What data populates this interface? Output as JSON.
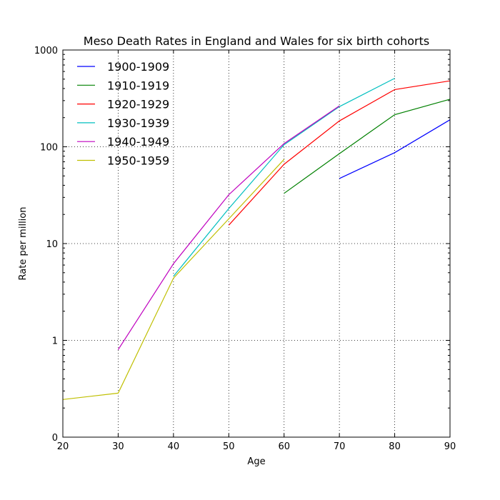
{
  "chart_data": {
    "type": "line",
    "title": "Meso Death Rates in England and Wales for six birth cohorts",
    "xlabel": "Age",
    "ylabel": "Rate per million",
    "xlim": [
      20,
      90
    ],
    "xticks": [
      20,
      30,
      40,
      50,
      60,
      70,
      80,
      90
    ],
    "xtick_labels": [
      "20",
      "30",
      "40",
      "50",
      "60",
      "70",
      "80",
      "90"
    ],
    "yscale": "log",
    "yticks": [
      0.1,
      1,
      10,
      100,
      1000
    ],
    "ytick_labels": [
      "0",
      "1",
      "10",
      "100",
      "1000"
    ],
    "ylim": [
      0.1,
      1000
    ],
    "grid": true,
    "legend_position": "upper-left",
    "series": [
      {
        "name": "1900-1909",
        "color": "#0000ff",
        "x": [
          70,
          80,
          90
        ],
        "y": [
          47,
          87,
          190
        ]
      },
      {
        "name": "1910-1919",
        "color": "#008000",
        "x": [
          60,
          70,
          80,
          90
        ],
        "y": [
          33,
          85,
          215,
          310
        ]
      },
      {
        "name": "1920-1929",
        "color": "#ff0000",
        "x": [
          50,
          60,
          70,
          80,
          90
        ],
        "y": [
          15.5,
          66,
          185,
          390,
          480
        ]
      },
      {
        "name": "1930-1939",
        "color": "#00bfbf",
        "x": [
          40,
          50,
          60,
          70,
          80
        ],
        "y": [
          4.6,
          23,
          105,
          260,
          510
        ]
      },
      {
        "name": "1940-1949",
        "color": "#bf00bf",
        "x": [
          30,
          40,
          50,
          60,
          70
        ],
        "y": [
          0.8,
          6.2,
          32,
          108,
          265
        ]
      },
      {
        "name": "1950-1959",
        "color": "#bfbf00",
        "x": [
          20,
          30,
          40,
          50,
          60
        ],
        "y": [
          0.245,
          0.285,
          4.4,
          18,
          74
        ]
      }
    ]
  }
}
